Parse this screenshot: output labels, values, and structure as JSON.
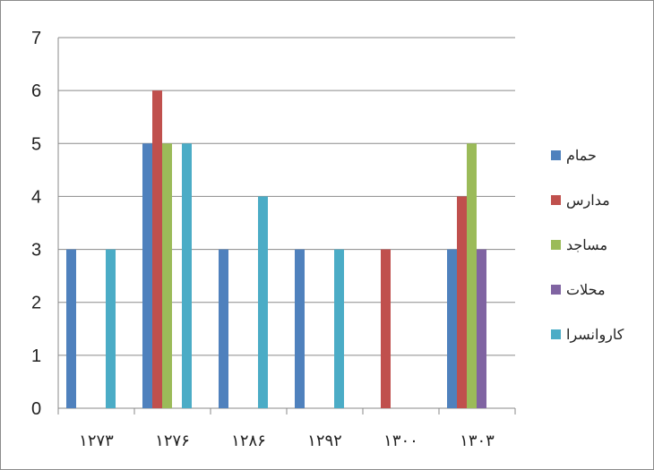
{
  "chart_data": {
    "type": "bar",
    "categories": [
      "۱۲۷۳",
      "۱۲۷۶",
      "۱۲۸۶",
      "۱۲۹۲",
      "۱۳۰۰",
      "۱۳۰۳"
    ],
    "series": [
      {
        "name": "حمام",
        "color": "#4f81bd",
        "values": [
          3,
          5,
          3,
          3,
          0,
          3
        ]
      },
      {
        "name": "مدارس",
        "color": "#c0504d",
        "values": [
          0,
          6,
          0,
          0,
          3,
          4
        ]
      },
      {
        "name": "مساجد",
        "color": "#9bbb59",
        "values": [
          0,
          5,
          0,
          0,
          0,
          5
        ]
      },
      {
        "name": "محلات",
        "color": "#8064a2",
        "values": [
          0,
          0,
          0,
          0,
          0,
          3
        ]
      },
      {
        "name": "کاروانسرا",
        "color": "#4bacc6",
        "values": [
          3,
          5,
          4,
          3,
          0,
          0
        ]
      }
    ],
    "y_ticks": [
      "0",
      "1",
      "2",
      "3",
      "4",
      "5",
      "6",
      "7"
    ],
    "ylim": [
      0,
      7
    ],
    "grid": true,
    "legend_position": "right"
  }
}
